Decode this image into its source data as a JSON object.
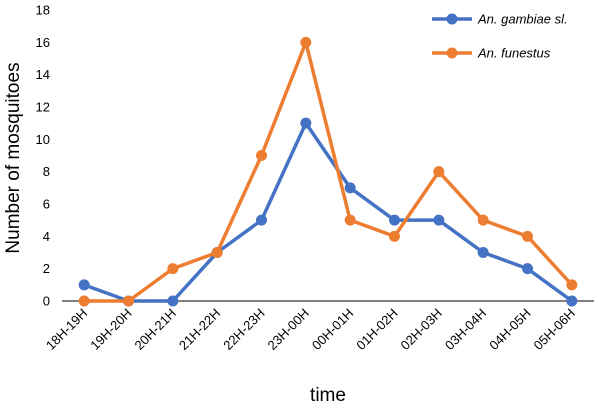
{
  "chart_data": {
    "type": "line",
    "title": "",
    "xlabel": "time",
    "ylabel": "Number of mosquitoes",
    "categories": [
      "18H-19H",
      "19H-20H",
      "20H-21H",
      "21H-22H",
      "22H-23H",
      "23H-00H",
      "00H-01H",
      "01H-02H",
      "02H-03H",
      "03H-04H",
      "04H-05H",
      "05H-06H"
    ],
    "y_ticks": [
      0,
      2,
      4,
      6,
      8,
      10,
      12,
      14,
      16,
      18
    ],
    "ylim": [
      0,
      18
    ],
    "grid": false,
    "legend_position": "top-right",
    "series": [
      {
        "name": "An. gambiae sl.",
        "color": "#4472C4",
        "values": [
          1,
          0,
          0,
          3,
          5,
          11,
          7,
          5,
          5,
          3,
          2,
          0
        ]
      },
      {
        "name": "An. funestus",
        "color": "#ED7D31",
        "values": [
          0,
          0,
          2,
          3,
          9,
          16,
          5,
          4,
          8,
          5,
          4,
          1
        ]
      }
    ]
  }
}
